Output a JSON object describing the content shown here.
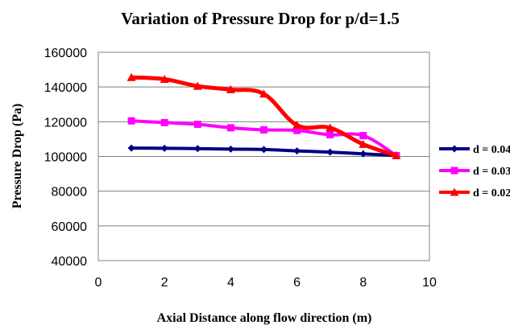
{
  "chart_data": {
    "type": "line",
    "title": "Variation of Pressure Drop for p/d=1.5",
    "xlabel": "Axial Distance along flow direction  (m)",
    "ylabel": "Pressure Drop (Pa)",
    "xlim": [
      0,
      10
    ],
    "ylim": [
      40000,
      160000
    ],
    "x_ticks": [
      "0",
      "2",
      "4",
      "6",
      "8",
      "10"
    ],
    "y_ticks": [
      "40000",
      "60000",
      "80000",
      "100000",
      "120000",
      "140000",
      "160000"
    ],
    "grid": "horizontal",
    "legend_position": "right",
    "series": [
      {
        "name": "d = 0.04",
        "color": "#000080",
        "marker": "diamond",
        "x": [
          1,
          2,
          3,
          4,
          5,
          6,
          7,
          8,
          9
        ],
        "y": [
          104800,
          104700,
          104500,
          104200,
          104000,
          103200,
          102500,
          101500,
          100500
        ]
      },
      {
        "name": "d = 0.03",
        "color": "#FF00FF",
        "marker": "square",
        "x": [
          1,
          2,
          3,
          4,
          5,
          6,
          7,
          8,
          9
        ],
        "y": [
          120500,
          119500,
          118500,
          116500,
          115300,
          115000,
          112500,
          112000,
          100500
        ]
      },
      {
        "name": "d = 0.02",
        "color": "#FF0000",
        "marker": "triangle",
        "x": [
          1,
          2,
          3,
          4,
          5,
          6,
          7,
          8,
          9
        ],
        "y": [
          145500,
          144500,
          140500,
          138500,
          136000,
          118000,
          116500,
          107000,
          100500
        ]
      }
    ]
  }
}
